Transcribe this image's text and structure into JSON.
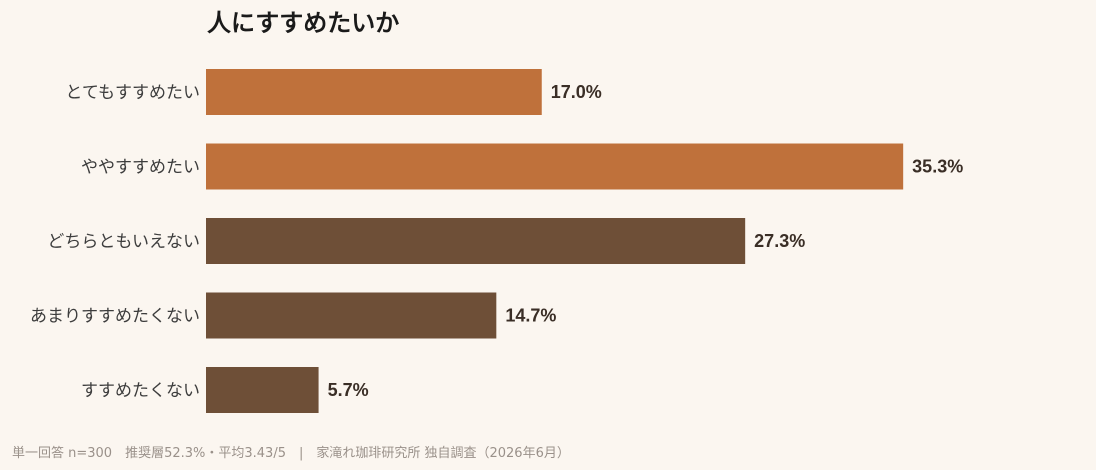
{
  "chart_data": {
    "type": "bar",
    "orientation": "horizontal",
    "title": "人にすすめたいか",
    "categories": [
      "とてもすすめたい",
      "ややすすめたい",
      "どちらともいえない",
      "あまりすすめたくない",
      "すすめたくない"
    ],
    "values": [
      17.0,
      35.3,
      27.3,
      14.7,
      5.7
    ],
    "value_labels": [
      "17.0%",
      "35.3%",
      "27.3%",
      "14.7%",
      "5.7%"
    ],
    "unit": "%",
    "bar_colors": [
      "#bf713b",
      "#bf713b",
      "#6e4f37",
      "#6e4f37",
      "#6e4f37"
    ],
    "xlim": [
      0,
      40
    ],
    "grid": false,
    "legend": "none",
    "footnote": "単一回答 n=300　推奨層52.3%・平均3.43/5　|　家滝れ珈琲研究所 独自調査（2026年6月）"
  }
}
